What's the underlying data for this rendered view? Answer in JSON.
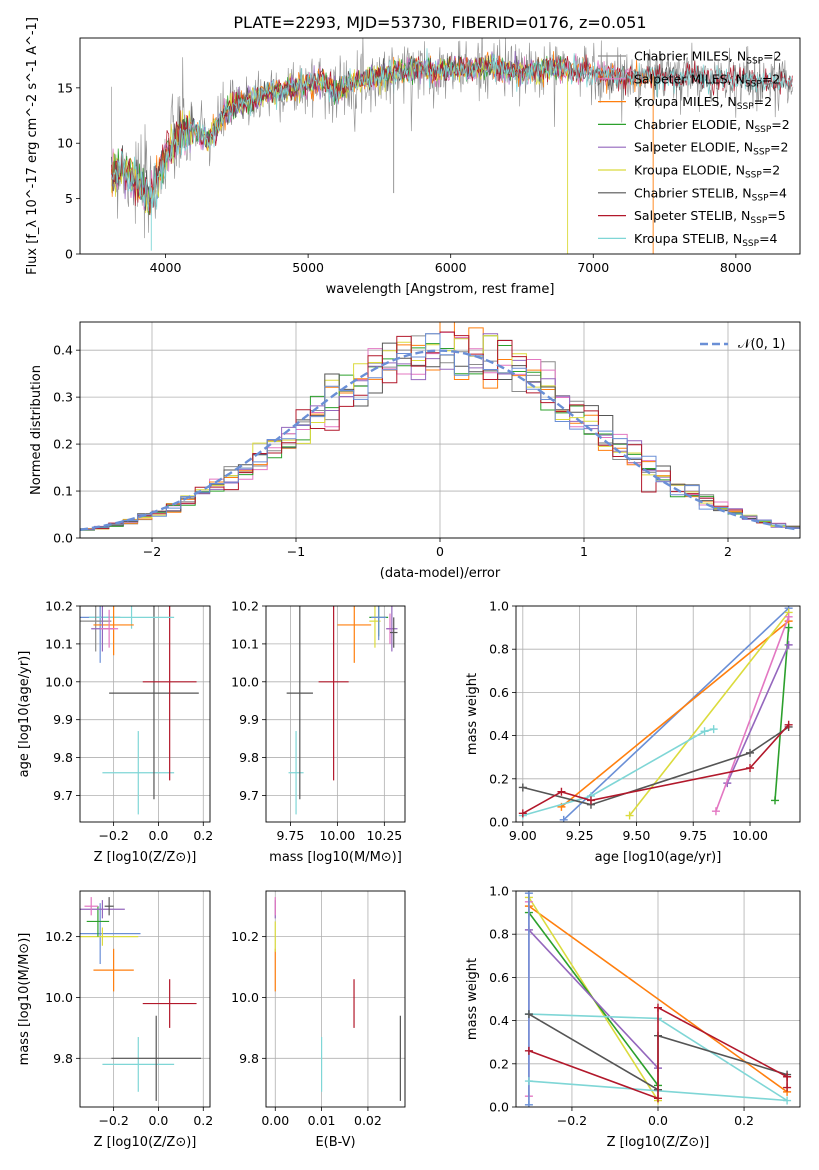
{
  "figure": {
    "title": "PLATE=2293, MJD=53730, FIBERID=0176, z=0.051"
  },
  "colors": {
    "Chabrier MILES": "#8c8c8c",
    "Salpeter MILES": "#e377c2",
    "Kroupa MILES": "#ff7f0e",
    "Chabrier ELODIE": "#2ca02c",
    "Salpeter ELODIE": "#9467bd",
    "Kroupa ELODIE": "#dbdb3d",
    "Chabrier STELIB": "#555555",
    "Salpeter STELIB": "#b2182b",
    "Kroupa STELIB": "#7fd6d6",
    "Normal": "#6a8fd6"
  },
  "chart_data": [
    {
      "type": "line",
      "name": "spectrum",
      "xlabel": "wavelength [Angstrom, rest frame]",
      "ylabel": "Flux [f_λ 10^-17 erg cm^-2 s^-1 A^-1]",
      "xlim": [
        3400,
        8450
      ],
      "ylim": [
        0,
        19.5
      ],
      "xticks": [
        4000,
        5000,
        6000,
        7000,
        8000
      ],
      "yticks": [
        0,
        5,
        10,
        15
      ],
      "legend_placement": "right",
      "legend": [
        {
          "label": "Chabrier MILES, N_SSP=2",
          "key": "Chabrier MILES"
        },
        {
          "label": "Salpeter MILES, N_SSP=2",
          "key": "Salpeter MILES"
        },
        {
          "label": "Kroupa MILES, N_SSP=2",
          "key": "Kroupa MILES"
        },
        {
          "label": "Chabrier ELODIE, N_SSP=2",
          "key": "Chabrier ELODIE"
        },
        {
          "label": "Salpeter ELODIE, N_SSP=2",
          "key": "Salpeter ELODIE"
        },
        {
          "label": "Kroupa ELODIE, N_SSP=2",
          "key": "Kroupa ELODIE"
        },
        {
          "label": "Chabrier STELIB, N_SSP=4",
          "key": "Chabrier STELIB"
        },
        {
          "label": "Salpeter STELIB, N_SSP=5",
          "key": "Salpeter STELIB"
        },
        {
          "label": "Kroupa STELIB, N_SSP=4",
          "key": "Kroupa STELIB"
        }
      ],
      "continuum": [
        [
          3620,
          7.0
        ],
        [
          3700,
          7.8
        ],
        [
          3800,
          6.5
        ],
        [
          3900,
          5.0
        ],
        [
          4000,
          9.0
        ],
        [
          4100,
          10.8
        ],
        [
          4200,
          11.2
        ],
        [
          4300,
          10.2
        ],
        [
          4400,
          12.5
        ],
        [
          4500,
          13.5
        ],
        [
          4600,
          13.8
        ],
        [
          4700,
          14.5
        ],
        [
          4800,
          14.8
        ],
        [
          4900,
          15.0
        ],
        [
          5000,
          15.3
        ],
        [
          5100,
          15.6
        ],
        [
          5200,
          14.5
        ],
        [
          5300,
          15.5
        ],
        [
          5400,
          15.8
        ],
        [
          5500,
          16.1
        ],
        [
          5600,
          16.3
        ],
        [
          5700,
          16.6
        ],
        [
          5800,
          16.8
        ],
        [
          5900,
          16.5
        ],
        [
          6000,
          16.6
        ],
        [
          6100,
          16.7
        ],
        [
          6200,
          16.8
        ],
        [
          6300,
          16.9
        ],
        [
          6400,
          16.6
        ],
        [
          6500,
          16.4
        ],
        [
          6600,
          16.5
        ],
        [
          6700,
          16.8
        ],
        [
          6800,
          16.6
        ],
        [
          6900,
          16.5
        ],
        [
          7000,
          16.4
        ],
        [
          7100,
          16.2
        ],
        [
          7200,
          16.0
        ],
        [
          7300,
          15.9
        ],
        [
          7400,
          16.1
        ],
        [
          7500,
          16.0
        ],
        [
          7600,
          15.7
        ],
        [
          7700,
          16.2
        ],
        [
          7800,
          15.6
        ],
        [
          7900,
          15.9
        ],
        [
          8000,
          15.7
        ],
        [
          8100,
          15.8
        ],
        [
          8200,
          15.5
        ],
        [
          8300,
          15.6
        ],
        [
          8400,
          15.4
        ]
      ]
    },
    {
      "type": "line",
      "name": "residual-histogram",
      "xlabel": "(data-model)/error",
      "ylabel": "Normed distribution",
      "xlim": [
        -2.5,
        2.5
      ],
      "ylim": [
        0,
        0.46
      ],
      "xticks": [
        -2,
        -1,
        0,
        1,
        2
      ],
      "yticks": [
        0.0,
        0.1,
        0.2,
        0.3,
        0.4
      ],
      "legend_placement": "top-right",
      "legend": [
        {
          "label": "𝒩(0, 1)",
          "key": "Normal"
        }
      ],
      "bin_width": 0.1
    },
    {
      "type": "scatter",
      "name": "age-vs-Z",
      "xlabel": "Z [log10(Z/Z⊙)]",
      "ylabel": "age [log10(age/yr)]",
      "xlim": [
        -0.35,
        0.23
      ],
      "ylim": [
        9.63,
        10.2
      ],
      "xticks": [
        -0.2,
        0.0,
        0.2
      ],
      "yticks": [
        9.7,
        9.8,
        9.9,
        10.0,
        10.1,
        10.2
      ],
      "points": [
        {
          "key": "Kroupa STELIB",
          "x": -0.09,
          "y": 9.76,
          "xerr": 0.16,
          "yerr": 0.11
        },
        {
          "key": "Chabrier STELIB",
          "x": -0.02,
          "y": 9.97,
          "xerr": 0.2,
          "yerr": 0.28
        },
        {
          "key": "Salpeter STELIB",
          "x": 0.05,
          "y": 10.0,
          "xerr": 0.12,
          "yerr": 0.26
        },
        {
          "key": "Normal",
          "x": -0.26,
          "y": 10.17,
          "xerr": 0.09,
          "yerr": 0.12
        },
        {
          "key": "Kroupa STELIB",
          "x": -0.12,
          "y": 10.17,
          "xerr": 0.19,
          "yerr": 0.03
        },
        {
          "key": "Chabrier MILES",
          "x": -0.28,
          "y": 10.16,
          "xerr": 0.07,
          "yerr": 0.08
        },
        {
          "key": "Kroupa MILES",
          "x": -0.2,
          "y": 10.15,
          "xerr": 0.09,
          "yerr": 0.08
        },
        {
          "key": "Salpeter ELODIE",
          "x": -0.25,
          "y": 10.14,
          "xerr": 0.05,
          "yerr": 0.06
        },
        {
          "key": "Salpeter MILES",
          "x": -0.22,
          "y": 10.14,
          "xerr": 0.04,
          "yerr": 0.05
        }
      ]
    },
    {
      "type": "scatter",
      "name": "age-vs-mass",
      "xlabel": "mass [log10(M/M⊙)]",
      "ylabel": "",
      "xlim": [
        9.62,
        10.36
      ],
      "ylim": [
        9.63,
        10.2
      ],
      "xticks": [
        9.75,
        10.0,
        10.25
      ],
      "yticks": [
        9.7,
        9.8,
        9.9,
        10.0,
        10.1,
        10.2
      ],
      "points": [
        {
          "key": "Kroupa STELIB",
          "x": 9.78,
          "y": 9.76,
          "xerr": 0.04,
          "yerr": 0.11
        },
        {
          "key": "Chabrier STELIB",
          "x": 9.8,
          "y": 9.97,
          "xerr": 0.07,
          "yerr": 0.28
        },
        {
          "key": "Salpeter STELIB",
          "x": 9.98,
          "y": 10.0,
          "xerr": 0.08,
          "yerr": 0.26
        },
        {
          "key": "Kroupa MILES",
          "x": 10.09,
          "y": 10.15,
          "xerr": 0.09,
          "yerr": 0.1
        },
        {
          "key": "Chabrier ELODIE",
          "x": 10.22,
          "y": 10.17,
          "xerr": 0.05,
          "yerr": 0.05
        },
        {
          "key": "Kroupa ELODIE",
          "x": 10.2,
          "y": 10.16,
          "xerr": 0.03,
          "yerr": 0.07
        },
        {
          "key": "Normal",
          "x": 10.22,
          "y": 10.17,
          "xerr": 0.04,
          "yerr": 0.06
        },
        {
          "key": "Salpeter MILES",
          "x": 10.28,
          "y": 10.14,
          "xerr": 0.02,
          "yerr": 0.04
        },
        {
          "key": "Salpeter ELODIE",
          "x": 10.29,
          "y": 10.14,
          "xerr": 0.03,
          "yerr": 0.06
        },
        {
          "key": "Chabrier STELIB",
          "x": 10.3,
          "y": 10.13,
          "xerr": 0.02,
          "yerr": 0.04
        }
      ]
    },
    {
      "type": "line",
      "name": "mass-weight-vs-age",
      "xlabel": "age [log10(age/yr)]",
      "ylabel": "mass weight",
      "xlim": [
        8.97,
        10.22
      ],
      "ylim": [
        0,
        1.0
      ],
      "xticks": [
        9.0,
        9.25,
        9.5,
        9.75,
        10.0
      ],
      "yticks": [
        0.0,
        0.2,
        0.4,
        0.6,
        0.8,
        1.0
      ],
      "series": [
        {
          "key": "Normal",
          "points": [
            [
              9.18,
              0.01
            ],
            [
              10.17,
              0.99
            ]
          ]
        },
        {
          "key": "Kroupa MILES",
          "points": [
            [
              9.17,
              0.07
            ],
            [
              10.17,
              0.93
            ]
          ]
        },
        {
          "key": "Kroupa ELODIE",
          "points": [
            [
              9.47,
              0.03
            ],
            [
              10.17,
              0.97
            ]
          ]
        },
        {
          "key": "Chabrier ELODIE",
          "points": [
            [
              10.11,
              0.1
            ],
            [
              10.17,
              0.9
            ]
          ]
        },
        {
          "key": "Salpeter ELODIE",
          "points": [
            [
              9.9,
              0.18
            ],
            [
              10.17,
              0.82
            ]
          ]
        },
        {
          "key": "Salpeter MILES",
          "points": [
            [
              9.85,
              0.05
            ],
            [
              10.17,
              0.95
            ]
          ]
        },
        {
          "key": "Kroupa STELIB",
          "points": [
            [
              9.0,
              0.03
            ],
            [
              9.3,
              0.12
            ],
            [
              9.8,
              0.42
            ],
            [
              9.84,
              0.43
            ]
          ]
        },
        {
          "key": "Chabrier STELIB",
          "points": [
            [
              9.0,
              0.16
            ],
            [
              9.3,
              0.08
            ],
            [
              10.0,
              0.32
            ],
            [
              10.17,
              0.44
            ]
          ]
        },
        {
          "key": "Salpeter STELIB",
          "points": [
            [
              9.0,
              0.04
            ],
            [
              9.17,
              0.14
            ],
            [
              9.3,
              0.1
            ],
            [
              10.0,
              0.25
            ],
            [
              10.17,
              0.45
            ]
          ]
        }
      ]
    },
    {
      "type": "scatter",
      "name": "mass-vs-Z",
      "xlabel": "Z [log10(Z/Z⊙)]",
      "ylabel": "mass [log10(M/M⊙)]",
      "xlim": [
        -0.35,
        0.23
      ],
      "ylim": [
        9.64,
        10.35
      ],
      "xticks": [
        -0.2,
        0.0,
        0.2
      ],
      "yticks": [
        9.8,
        10.0,
        10.2
      ],
      "points": [
        {
          "key": "Kroupa STELIB",
          "x": -0.09,
          "y": 9.78,
          "xerr": 0.16,
          "yerr": 0.09
        },
        {
          "key": "Chabrier STELIB",
          "x": -0.01,
          "y": 9.8,
          "xerr": 0.2,
          "yerr": 0.14
        },
        {
          "key": "Salpeter STELIB",
          "x": 0.05,
          "y": 9.98,
          "xerr": 0.12,
          "yerr": 0.08
        },
        {
          "key": "Kroupa MILES",
          "x": -0.2,
          "y": 10.09,
          "xerr": 0.09,
          "yerr": 0.07
        },
        {
          "key": "Normal",
          "x": -0.26,
          "y": 10.21,
          "xerr": 0.18,
          "yerr": 0.1
        },
        {
          "key": "Kroupa ELODIE",
          "x": -0.25,
          "y": 10.2,
          "xerr": 0.16,
          "yerr": 0.03
        },
        {
          "key": "Chabrier ELODIE",
          "x": -0.27,
          "y": 10.25,
          "xerr": 0.05,
          "yerr": 0.05
        },
        {
          "key": "Salpeter ELODIE",
          "x": -0.25,
          "y": 10.29,
          "xerr": 0.1,
          "yerr": 0.03
        },
        {
          "key": "Salpeter MILES",
          "x": -0.3,
          "y": 10.3,
          "xerr": 0.03,
          "yerr": 0.03
        },
        {
          "key": "Chabrier STELIB",
          "x": -0.22,
          "y": 10.3,
          "xerr": 0.02,
          "yerr": 0.03
        }
      ]
    },
    {
      "type": "scatter",
      "name": "mass-vs-ebv",
      "xlabel": "E(B-V)",
      "ylabel": "",
      "xlim": [
        -0.002,
        0.028
      ],
      "ylim": [
        9.64,
        10.35
      ],
      "xticks": [
        0.0,
        0.01,
        0.02
      ],
      "yticks": [
        9.8,
        10.0,
        10.2
      ],
      "points": [
        {
          "key": "Kroupa STELIB",
          "x": 0.01,
          "y": 9.78,
          "xerr": 0,
          "yerr": 0.09
        },
        {
          "key": "Chabrier STELIB",
          "x": 0.027,
          "y": 9.8,
          "xerr": 0,
          "yerr": 0.14
        },
        {
          "key": "Salpeter STELIB",
          "x": 0.017,
          "y": 9.98,
          "xerr": 0,
          "yerr": 0.08
        },
        {
          "key": "Kroupa MILES",
          "x": 0.0,
          "y": 10.09,
          "xerr": 0,
          "yerr": 0.07
        },
        {
          "key": "Kroupa ELODIE",
          "x": 0.0,
          "y": 10.2,
          "xerr": 0,
          "yerr": 0.05
        },
        {
          "key": "Salpeter ELODIE",
          "x": 0.0,
          "y": 10.29,
          "xerr": 0,
          "yerr": 0.03
        },
        {
          "key": "Salpeter MILES",
          "x": 0.0,
          "y": 10.3,
          "xerr": 0,
          "yerr": 0.03
        }
      ]
    },
    {
      "type": "line",
      "name": "mass-weight-vs-Z",
      "xlabel": "Z [log10(Z/Z⊙)]",
      "ylabel": "mass weight",
      "xlim": [
        -0.33,
        0.33
      ],
      "ylim": [
        0,
        1.0
      ],
      "xticks": [
        -0.2,
        0.0,
        0.2
      ],
      "yticks": [
        0.0,
        0.2,
        0.4,
        0.6,
        0.8,
        1.0
      ],
      "series": [
        {
          "key": "Kroupa MILES",
          "points": [
            [
              -0.3,
              0.93
            ],
            [
              0.3,
              0.07
            ]
          ]
        },
        {
          "key": "Kroupa ELODIE",
          "points": [
            [
              -0.3,
              0.97
            ],
            [
              0.0,
              0.03
            ]
          ]
        },
        {
          "key": "Chabrier ELODIE",
          "points": [
            [
              -0.3,
              0.9
            ],
            [
              0.0,
              0.1
            ]
          ]
        },
        {
          "key": "Salpeter ELODIE",
          "points": [
            [
              -0.3,
              0.82
            ],
            [
              0.0,
              0.18
            ]
          ]
        },
        {
          "key": "Salpeter MILES",
          "points": [
            [
              -0.3,
              0.95
            ],
            [
              -0.3,
              0.05
            ]
          ]
        },
        {
          "key": "Normal",
          "points": [
            [
              -0.3,
              0.99
            ],
            [
              -0.3,
              0.01
            ]
          ]
        },
        {
          "key": "Kroupa STELIB",
          "points": [
            [
              -0.3,
              0.43
            ],
            [
              0.0,
              0.41
            ],
            [
              0.3,
              0.03
            ],
            [
              -0.3,
              0.12
            ]
          ]
        },
        {
          "key": "Chabrier STELIB",
          "points": [
            [
              -0.3,
              0.43
            ],
            [
              0.0,
              0.08
            ],
            [
              0.0,
              0.33
            ],
            [
              0.3,
              0.15
            ]
          ]
        },
        {
          "key": "Salpeter STELIB",
          "points": [
            [
              -0.3,
              0.26
            ],
            [
              0.0,
              0.04
            ],
            [
              0.0,
              0.46
            ],
            [
              0.3,
              0.14
            ],
            [
              0.3,
              0.09
            ]
          ]
        }
      ]
    }
  ]
}
